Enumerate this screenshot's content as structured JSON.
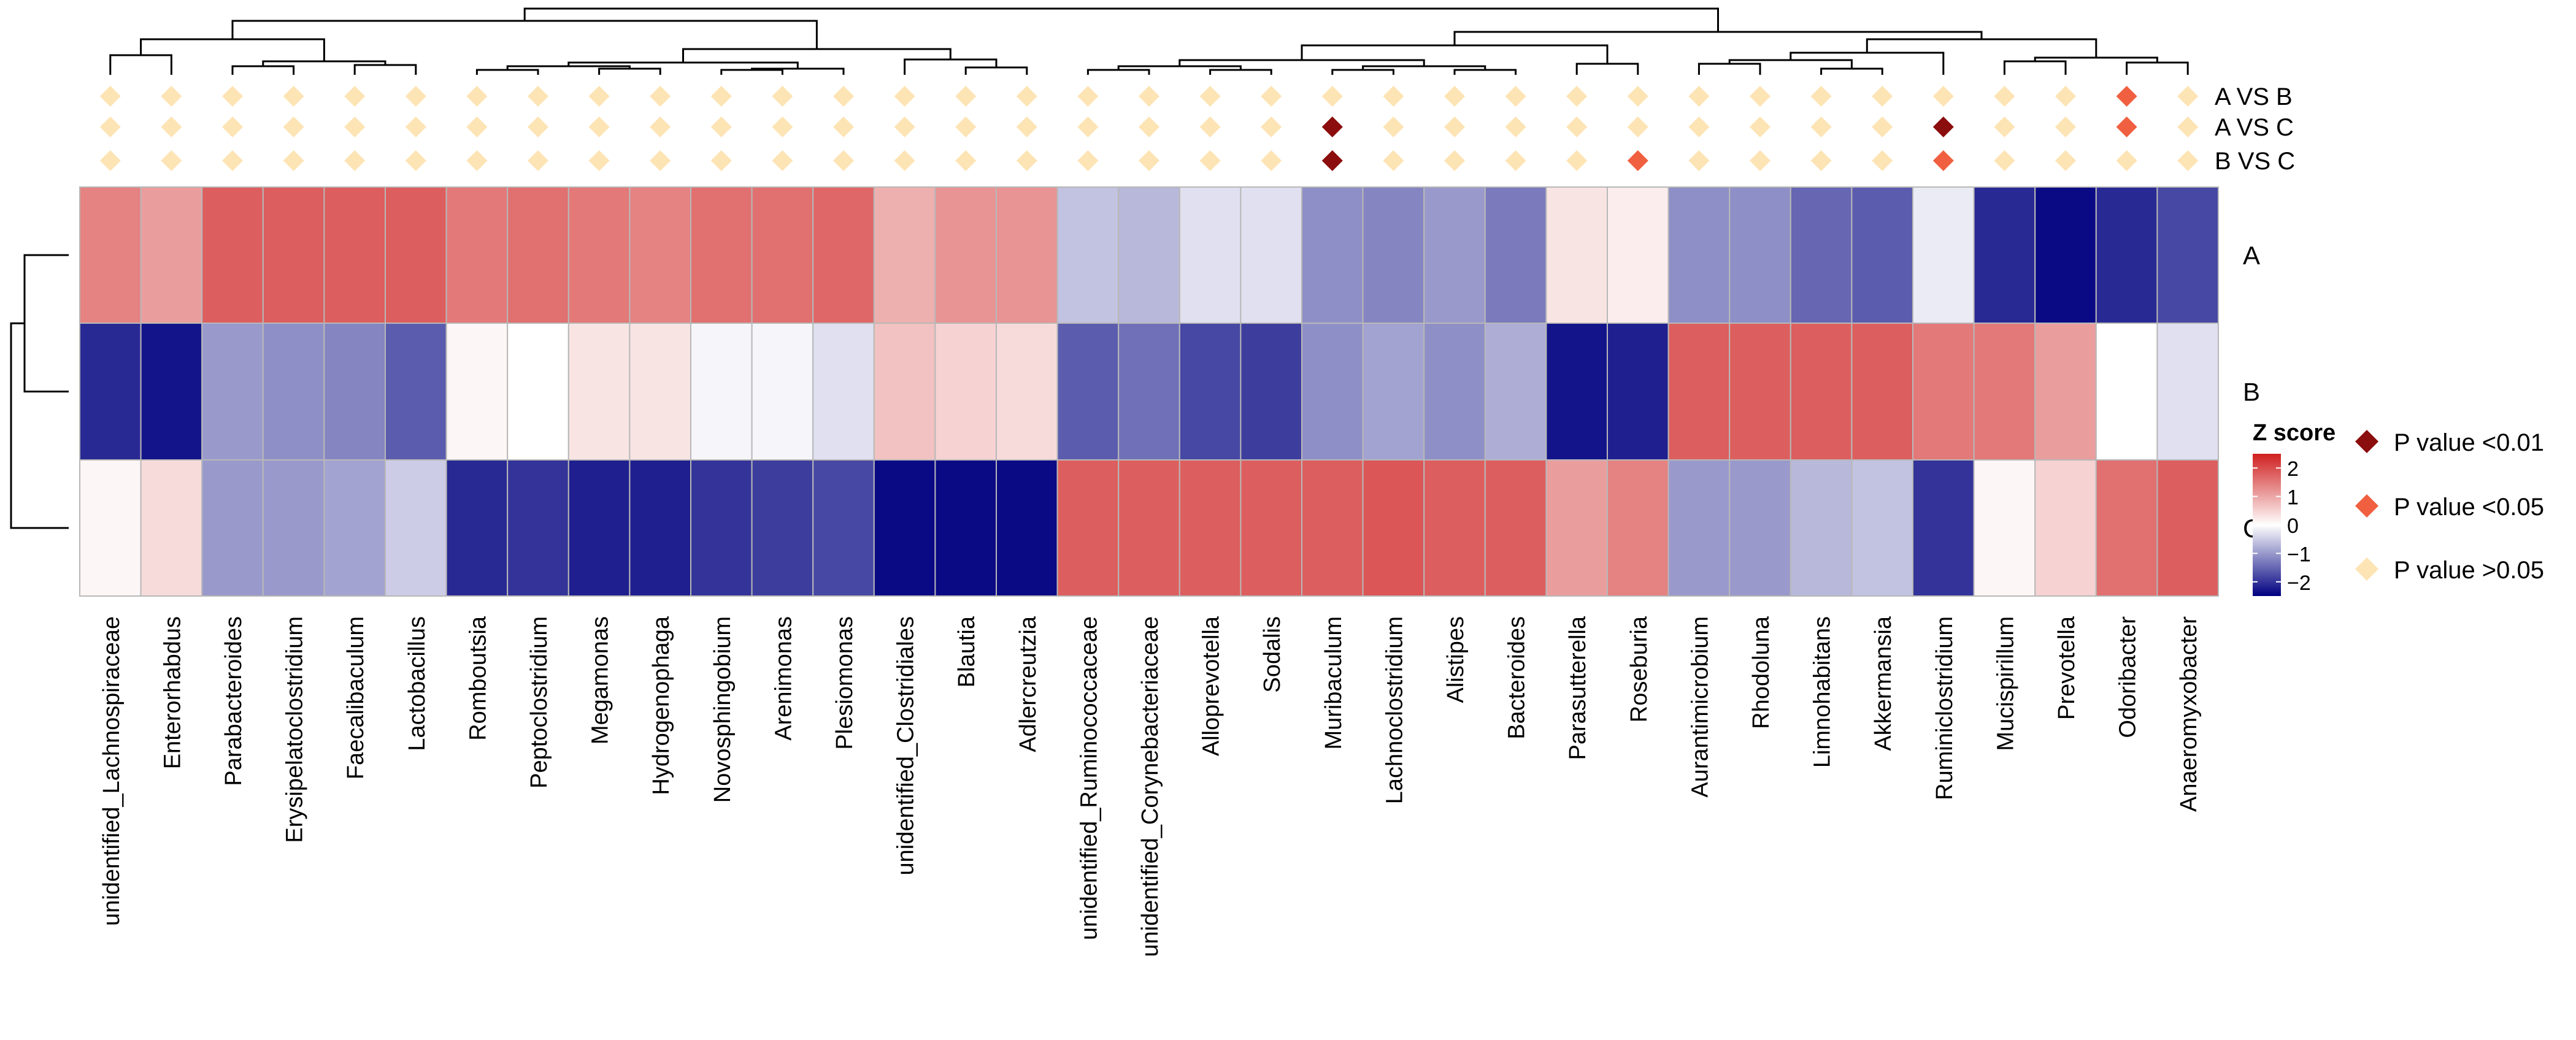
{
  "chart_data": {
    "type": "heatmap",
    "columns": [
      "unidentified_Lachnospiraceae",
      "Enterorhabdus",
      "Parabacteroides",
      "Erysipelatoclostridium",
      "Faecalibaculum",
      "Lactobacillus",
      "Romboutsia",
      "Peptoclostridium",
      "Megamonas",
      "Hydrogenophaga",
      "Novosphingobium",
      "Arenimonas",
      "Plesiomonas",
      "unidentified_Clostridiales",
      "Blautia",
      "Adlercreutzia",
      "unidentified_Ruminococcaceae",
      "unidentified_Corynebacteriaceae",
      "Alloprevotella",
      "Sodalis",
      "Muribaculum",
      "Lachnoclostridium",
      "Alistipes",
      "Bacteroides",
      "Parasutterella",
      "Roseburia",
      "Aurantimicrobium",
      "Rhodoluna",
      "Limnohabitans",
      "Akkermansia",
      "Ruminiclostridium",
      "Mucispirillum",
      "Prevotella",
      "Odoribacter",
      "Anaeromyxobacter"
    ],
    "rows": [
      "A",
      "B",
      "C"
    ],
    "z_values": [
      [
        1.4,
        1.1,
        1.8,
        1.8,
        1.8,
        1.8,
        1.5,
        1.6,
        1.5,
        1.4,
        1.6,
        1.6,
        1.7,
        0.9,
        1.2,
        1.2,
        -0.6,
        -0.7,
        -0.3,
        -0.3,
        -1.1,
        -1.2,
        -1.0,
        -1.3,
        0.3,
        0.2,
        -1.1,
        -1.1,
        -1.5,
        -1.6,
        -0.2,
        -2.1,
        -2.4,
        -2.1,
        -1.8
      ],
      [
        -2.1,
        -2.3,
        -1.0,
        -1.1,
        -1.2,
        -1.6,
        0.1,
        0.0,
        0.3,
        0.3,
        -0.1,
        -0.1,
        -0.3,
        0.7,
        0.5,
        0.4,
        -1.6,
        -1.4,
        -1.8,
        -1.9,
        -1.1,
        -0.9,
        -1.1,
        -0.8,
        -2.3,
        -2.2,
        1.8,
        1.8,
        1.8,
        1.8,
        1.5,
        1.5,
        1.1,
        0.0,
        -0.3
      ],
      [
        0.1,
        0.4,
        -1.0,
        -1.0,
        -0.9,
        -0.5,
        -2.1,
        -2.0,
        -2.2,
        -2.2,
        -2.0,
        -1.9,
        -1.8,
        -2.4,
        -2.4,
        -2.4,
        1.8,
        1.8,
        1.8,
        1.8,
        1.8,
        1.9,
        1.8,
        1.8,
        1.1,
        1.4,
        -1.0,
        -1.0,
        -0.7,
        -0.6,
        -2.0,
        0.1,
        0.5,
        1.6,
        1.8
      ]
    ],
    "comparisons": {
      "labels": [
        "A VS B",
        "A VS C",
        "B VS C"
      ],
      "significance": [
        [
          "ns",
          "ns",
          "ns"
        ],
        [
          "ns",
          "ns",
          "ns"
        ],
        [
          "ns",
          "ns",
          "ns"
        ],
        [
          "ns",
          "ns",
          "ns"
        ],
        [
          "ns",
          "ns",
          "ns"
        ],
        [
          "ns",
          "ns",
          "ns"
        ],
        [
          "ns",
          "ns",
          "ns"
        ],
        [
          "ns",
          "ns",
          "ns"
        ],
        [
          "ns",
          "ns",
          "ns"
        ],
        [
          "ns",
          "ns",
          "ns"
        ],
        [
          "ns",
          "ns",
          "ns"
        ],
        [
          "ns",
          "ns",
          "ns"
        ],
        [
          "ns",
          "ns",
          "ns"
        ],
        [
          "ns",
          "ns",
          "ns"
        ],
        [
          "ns",
          "ns",
          "ns"
        ],
        [
          "ns",
          "ns",
          "ns"
        ],
        [
          "ns",
          "ns",
          "ns"
        ],
        [
          "ns",
          "ns",
          "ns"
        ],
        [
          "ns",
          "ns",
          "ns"
        ],
        [
          "ns",
          "ns",
          "ns"
        ],
        [
          "ns",
          "p01",
          "p01"
        ],
        [
          "ns",
          "ns",
          "ns"
        ],
        [
          "ns",
          "ns",
          "ns"
        ],
        [
          "ns",
          "ns",
          "ns"
        ],
        [
          "ns",
          "ns",
          "ns"
        ],
        [
          "ns",
          "ns",
          "p05"
        ],
        [
          "ns",
          "ns",
          "ns"
        ],
        [
          "ns",
          "ns",
          "ns"
        ],
        [
          "ns",
          "ns",
          "ns"
        ],
        [
          "ns",
          "ns",
          "ns"
        ],
        [
          "ns",
          "p01",
          "p05"
        ],
        [
          "ns",
          "ns",
          "ns"
        ],
        [
          "ns",
          "ns",
          "ns"
        ],
        [
          "p05",
          "p05",
          "ns"
        ],
        [
          "ns",
          "ns",
          "ns"
        ]
      ]
    },
    "colorbar": {
      "title": "Z score",
      "ticks": [
        "2",
        "1",
        "0",
        "−1",
        "−2"
      ],
      "tick_values": [
        2,
        1,
        0,
        -1,
        -2
      ],
      "range": [
        -2.5,
        2.5
      ],
      "colors": {
        "low": "#000080",
        "mid": "#ffffff",
        "high": "#d02020"
      }
    },
    "legend": [
      {
        "key": "p01",
        "label": "P value <0.01",
        "color": "#8b0d0d"
      },
      {
        "key": "p05",
        "label": "P value <0.05",
        "color": "#f06040"
      },
      {
        "key": "ns",
        "label": "P value >0.05",
        "color": "#fde4b4"
      }
    ]
  }
}
